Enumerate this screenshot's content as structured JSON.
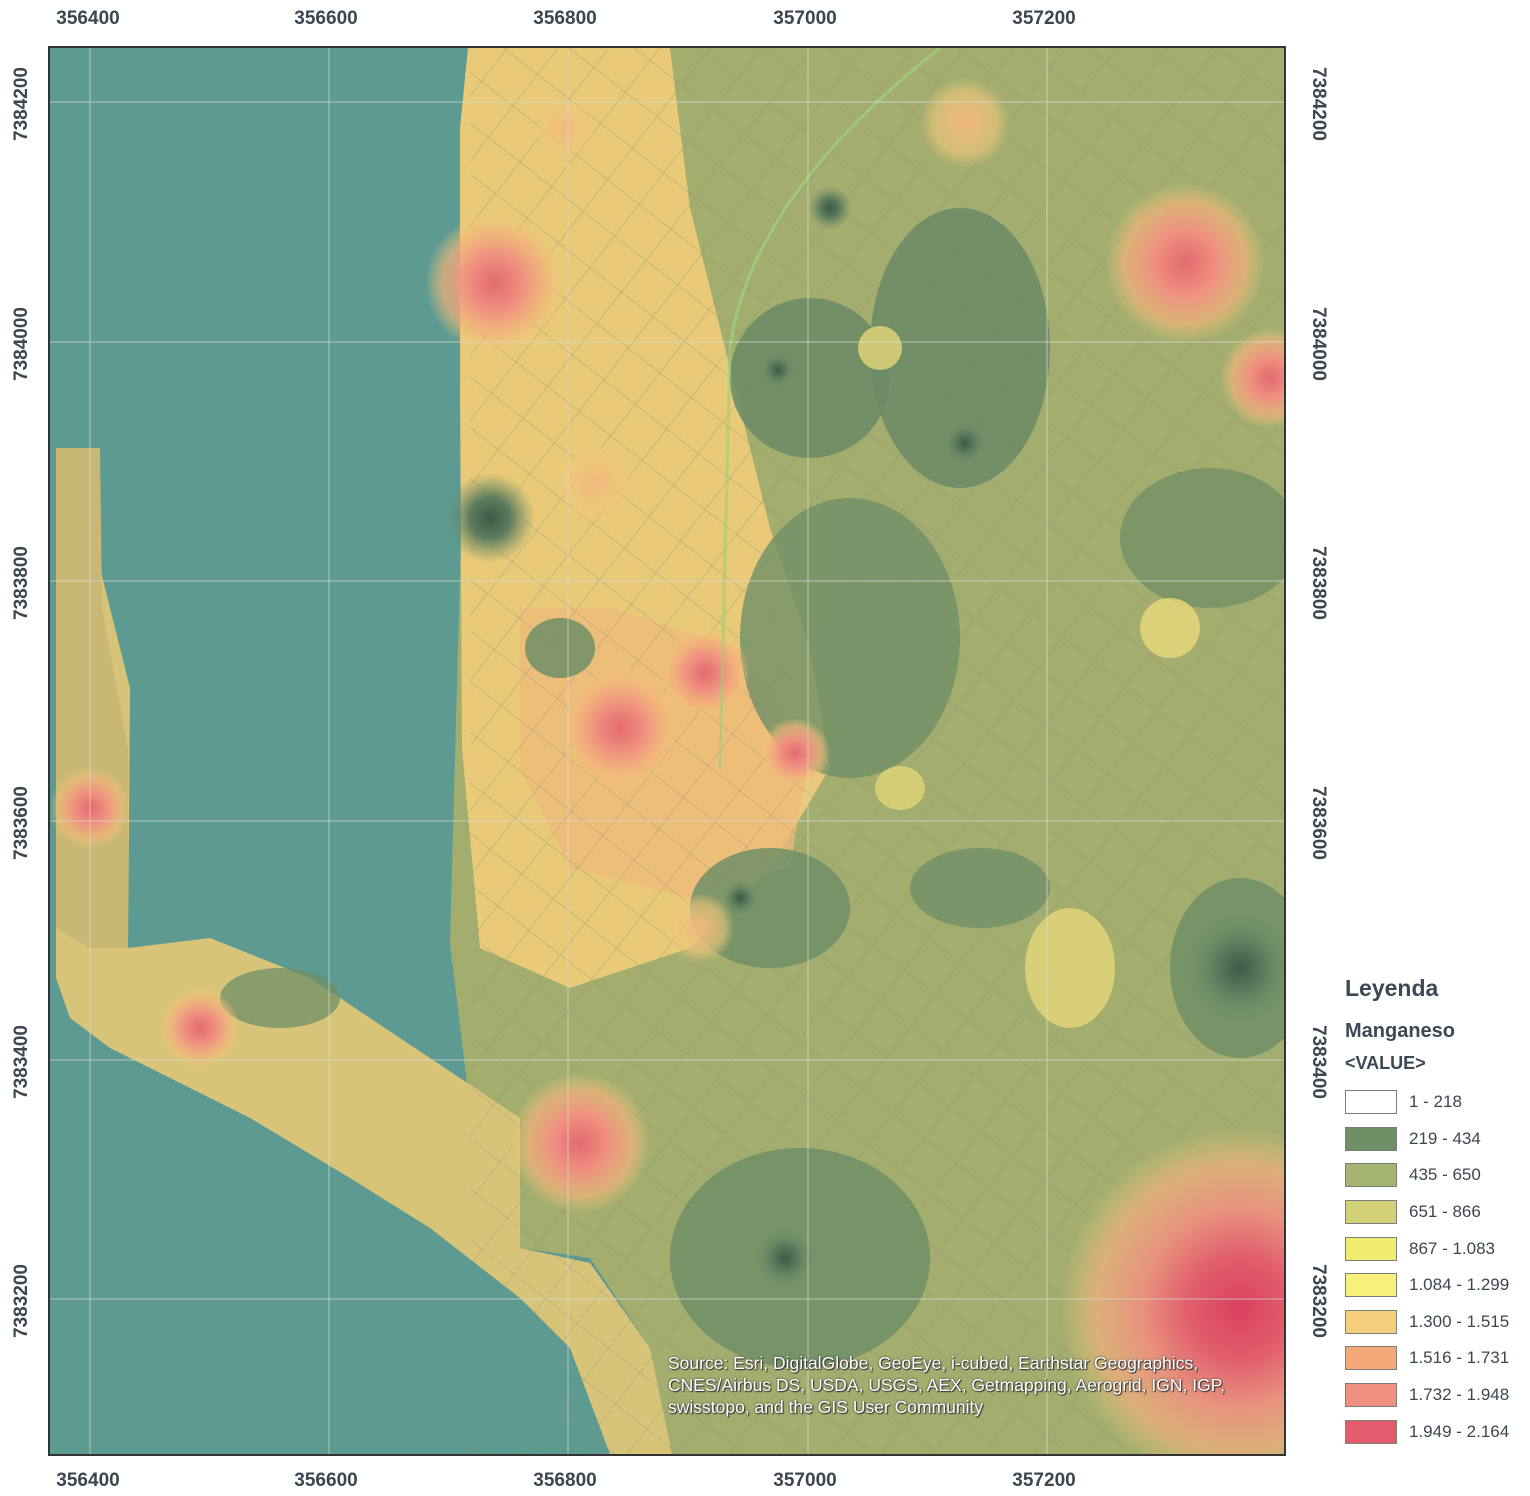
{
  "map": {
    "x_ticks": [
      "356400",
      "356600",
      "356800",
      "357000",
      "357200"
    ],
    "y_ticks": [
      "7384200",
      "7384000",
      "7383800",
      "7383600",
      "7383400",
      "7383200"
    ],
    "water_color": "#5d9a92",
    "credit": "Source: Esri, DigitalGlobe, GeoEye, i-cubed, Earthstar Geographics, CNES/Airbus DS, USDA, USGS, AEX, Getmapping, Aerogrid, IGN, IGP, swisstopo, and the GIS User Community"
  },
  "legend": {
    "title": "Leyenda",
    "layer": "Manganeso",
    "field": "<VALUE>",
    "classes": [
      {
        "label": "1 - 218",
        "color": "#ffffff"
      },
      {
        "label": "219 - 434",
        "color": "#6f8f67"
      },
      {
        "label": "435 - 650",
        "color": "#a5b56f"
      },
      {
        "label": "651 - 866",
        "color": "#d4d07a"
      },
      {
        "label": "867 - 1.083",
        "color": "#f2ec6e"
      },
      {
        "label": "1.084 - 1.299",
        "color": "#f7f07a"
      },
      {
        "label": "1.300 - 1.515",
        "color": "#f6cf7c"
      },
      {
        "label": "1.516 - 1.731",
        "color": "#f4a878"
      },
      {
        "label": "1.732 - 1.948",
        "color": "#ef8f80"
      },
      {
        "label": "1.949 - 2.164",
        "color": "#e25c6e"
      }
    ]
  }
}
